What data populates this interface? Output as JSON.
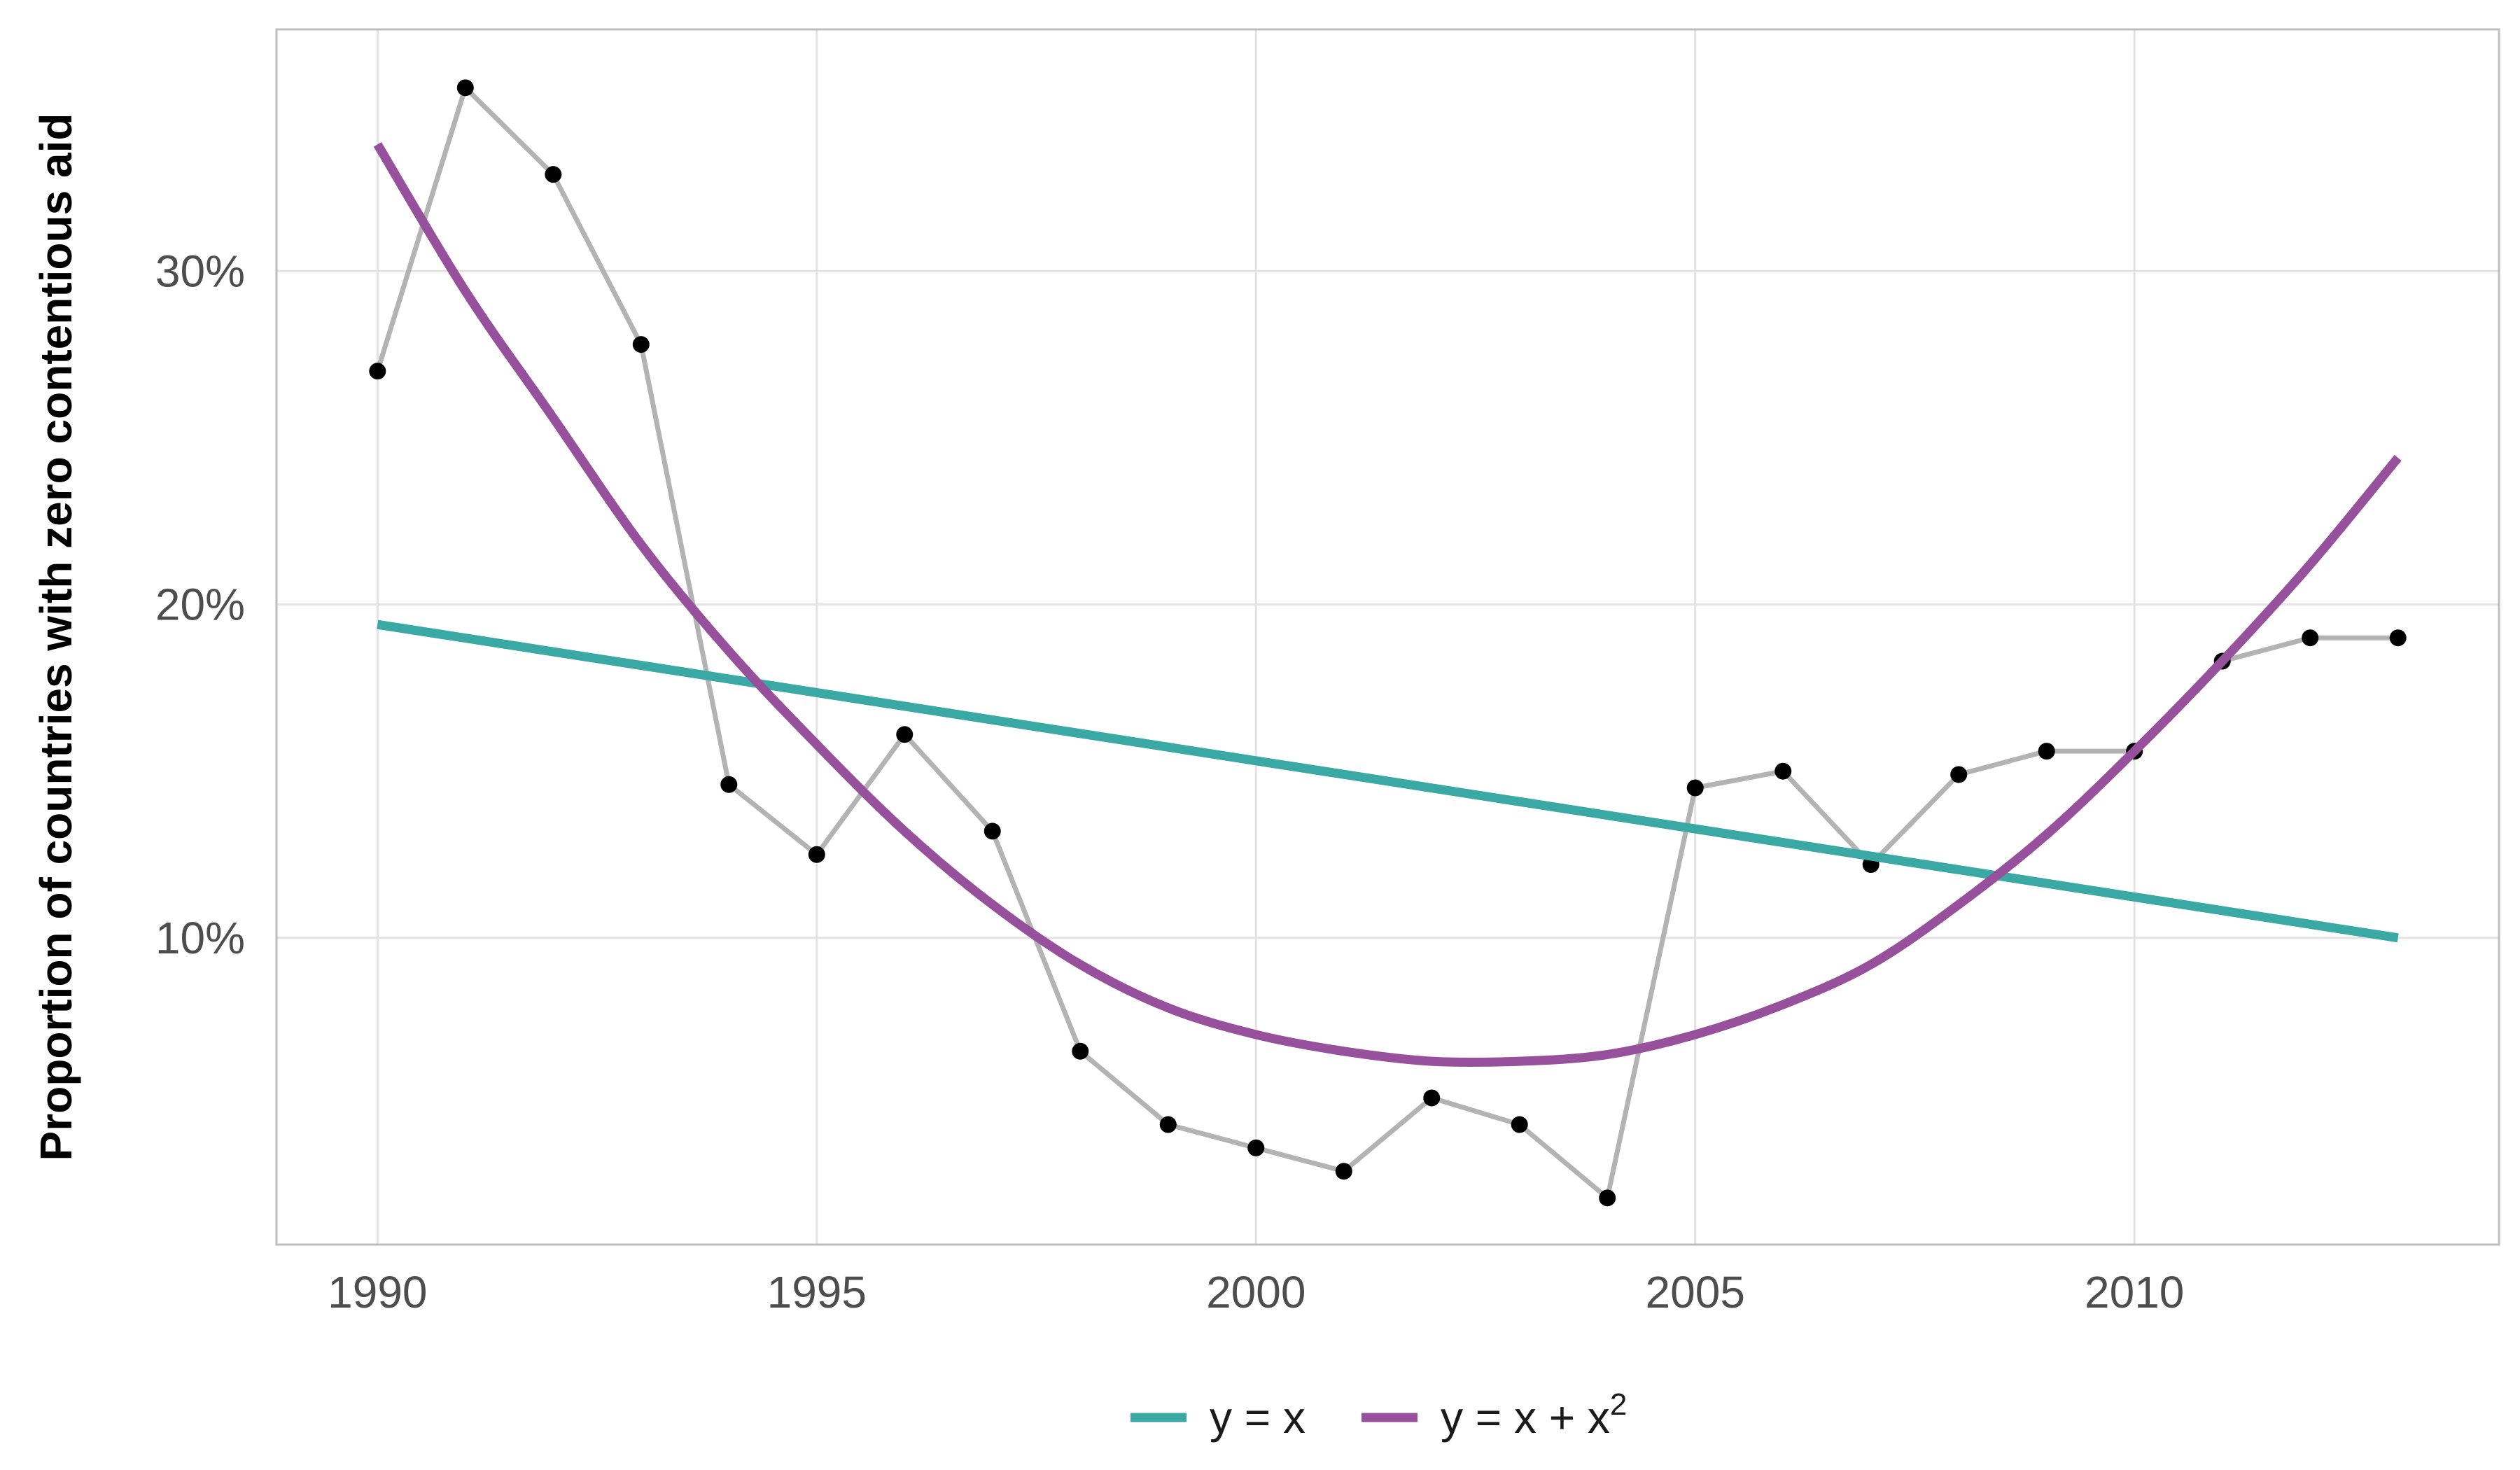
{
  "chart_data": {
    "type": "line",
    "title": "",
    "xlabel": "",
    "ylabel": "Proportion of countries with zero contentious aid",
    "xlim": [
      1988.85,
      2014.15
    ],
    "ylim": [
      0.008,
      0.3725
    ],
    "x_ticks": [
      1990,
      1995,
      2000,
      2005,
      2010
    ],
    "x_tick_labels": [
      "1990",
      "1995",
      "2000",
      "2005",
      "2010"
    ],
    "y_ticks": [
      0.1,
      0.2,
      0.3
    ],
    "y_tick_labels": [
      "10%",
      "20%",
      "30%"
    ],
    "grid": true,
    "legend_position": "bottom",
    "observed": {
      "line_color": "#b3b3b3",
      "point_color": "#000000",
      "x": [
        1990,
        1991,
        1992,
        1993,
        1994,
        1995,
        1996,
        1997,
        1998,
        1999,
        2000,
        2001,
        2002,
        2003,
        2004,
        2005,
        2006,
        2007,
        2008,
        2009,
        2010,
        2011,
        2012,
        2013
      ],
      "y": [
        0.27,
        0.355,
        0.329,
        0.278,
        0.146,
        0.125,
        0.161,
        0.132,
        0.066,
        0.044,
        0.037,
        0.03,
        0.052,
        0.044,
        0.022,
        0.145,
        0.15,
        0.122,
        0.149,
        0.156,
        0.156,
        0.183,
        0.19,
        0.19
      ]
    },
    "series": [
      {
        "name": "y = x",
        "color": "#3aa8a5",
        "x": [
          1990,
          2013
        ],
        "y": [
          0.194,
          0.1
        ]
      },
      {
        "name": "y = x + x²",
        "color": "#97509b",
        "x": [
          1990,
          1991,
          1992,
          1993,
          1994,
          1995,
          1996,
          1997,
          1998,
          1999,
          2000,
          2001,
          2002,
          2003,
          2004,
          2005,
          2006,
          2007,
          2008,
          2009,
          2010,
          2011,
          2012,
          2013
        ],
        "y": [
          0.338,
          0.294,
          0.256,
          0.218,
          0.186,
          0.158,
          0.132,
          0.11,
          0.092,
          0.079,
          0.071,
          0.066,
          0.063,
          0.063,
          0.065,
          0.071,
          0.08,
          0.092,
          0.11,
          0.131,
          0.156,
          0.183,
          0.212,
          0.244
        ]
      }
    ]
  },
  "legend": {
    "items": [
      {
        "label_main": "y = x + x",
        "label_sup": "2"
      }
    ],
    "linear_label": "y = x"
  }
}
